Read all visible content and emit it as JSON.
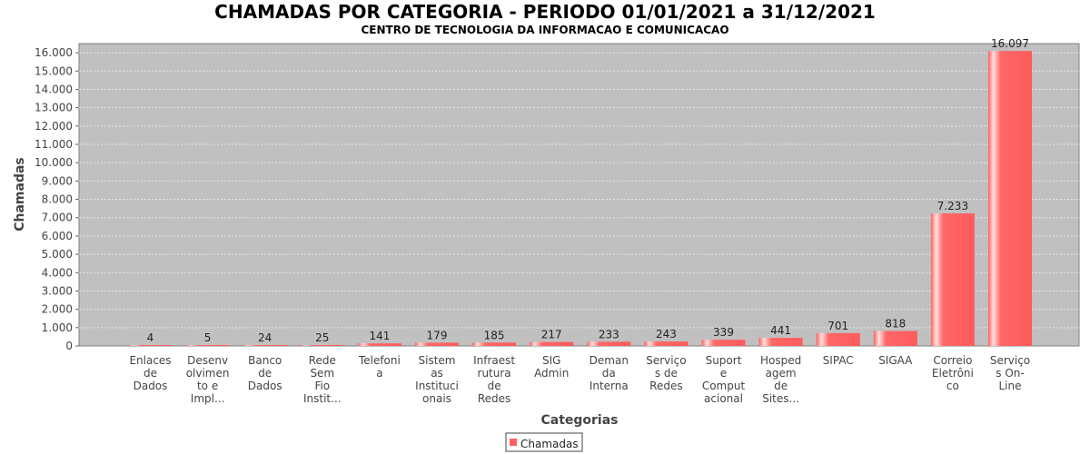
{
  "chart_data": {
    "type": "bar",
    "title": "CHAMADAS POR CATEGORIA - PERIODO 01/01/2021 a 31/12/2021",
    "subtitle": "CENTRO DE TECNOLOGIA DA INFORMACAO E COMUNICACAO",
    "xlabel": "Categorias",
    "ylabel": "Chamadas",
    "ylim": [
      0,
      16500
    ],
    "yticks": [
      "0",
      "1.000",
      "2.000",
      "3.000",
      "4.000",
      "5.000",
      "6.000",
      "7.000",
      "8.000",
      "9.000",
      "10.000",
      "11.000",
      "12.000",
      "13.000",
      "14.000",
      "15.000",
      "16.000"
    ],
    "grid": true,
    "legend_position": "bottom",
    "categories": [
      [
        "Enlaces",
        "de",
        "Dados"
      ],
      [
        "Desenv",
        "olvimen",
        "to e",
        "Impl..."
      ],
      [
        "Banco",
        "de",
        "Dados"
      ],
      [
        "Rede",
        "Sem",
        "Fio",
        "Instit..."
      ],
      [
        "Telefoni",
        "a"
      ],
      [
        "Sistem",
        "as",
        "Instituci",
        "onais"
      ],
      [
        "Infraest",
        "rutura",
        "de",
        "Redes"
      ],
      [
        "SIG",
        "Admin"
      ],
      [
        "Deman",
        "da",
        "Interna"
      ],
      [
        "Serviço",
        "s de",
        "Redes"
      ],
      [
        "Suport",
        "e",
        "Comput",
        "acional"
      ],
      [
        "Hosped",
        "agem",
        "de",
        "Sites..."
      ],
      [
        "SIPAC"
      ],
      [
        "SIGAA"
      ],
      [
        "Correio",
        "Eletrôni",
        "co"
      ],
      [
        "Serviço",
        "s On-",
        "Line"
      ]
    ],
    "series": [
      {
        "name": "Chamadas",
        "values": [
          4,
          5,
          24,
          25,
          141,
          179,
          185,
          217,
          233,
          243,
          339,
          441,
          701,
          818,
          7233,
          16097
        ],
        "labels": [
          "4",
          "5",
          "24",
          "25",
          "141",
          "179",
          "185",
          "217",
          "233",
          "243",
          "339",
          "441",
          "701",
          "818",
          "7.233",
          "16.097"
        ]
      }
    ],
    "colors": {
      "bar": "#ff6060",
      "bar_highlight": "#ffd8d8",
      "plot_bg": "#c0c0c0",
      "grid": "#e8e8e8"
    }
  }
}
